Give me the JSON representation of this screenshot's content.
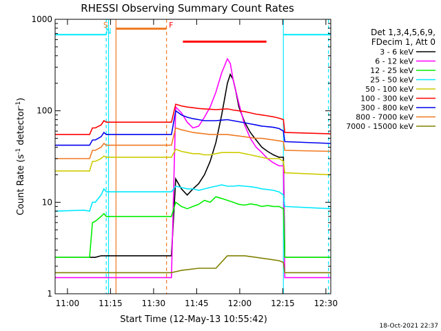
{
  "chart_data": {
    "type": "line",
    "title": "RHESSI Observing Summary Count Rates",
    "xlabel": "Start Time (12-May-13 10:55:42)",
    "ylabel_main": "Count Rate (s",
    "ylabel_exp1": "-1",
    "ylabel_mid": " detector",
    "ylabel_exp2": "-1",
    "ylabel_end": ")",
    "x_unit": "minutes after 10:55:42",
    "xlim": [
      0,
      96
    ],
    "ylim": [
      1,
      1000
    ],
    "yscale": "log",
    "x_ticks": [
      {
        "label": "11:00",
        "x": 4.3
      },
      {
        "label": "11:15",
        "x": 19.3
      },
      {
        "label": "11:30",
        "x": 34.3
      },
      {
        "label": "11:45",
        "x": 49.3
      },
      {
        "label": "12:00",
        "x": 64.3
      },
      {
        "label": "12:15",
        "x": 79.3
      },
      {
        "label": "12:30",
        "x": 94.3
      }
    ],
    "y_ticks": [
      {
        "label": "1",
        "y": 1
      },
      {
        "label": "10",
        "y": 10
      },
      {
        "label": "100",
        "y": 100
      },
      {
        "label": "1000",
        "y": 1000
      }
    ],
    "legend_position": "top-right",
    "legend_header": [
      "Det 1,3,4,5,6,9,",
      "FDecim 1, Att 0"
    ],
    "markers": [
      {
        "label": "S",
        "x": 17.6,
        "color": "#f07820"
      },
      {
        "label": "N",
        "x": 18.6,
        "color": "#00e8ff"
      },
      {
        "label": "F",
        "x": 40.4,
        "color": "#ff0000"
      }
    ],
    "bars": [
      {
        "name": "saa",
        "x0": 0,
        "x1": 17.8,
        "y": 680,
        "color": "#00e8ff"
      },
      {
        "name": "night",
        "x0": 21.2,
        "x1": 38.8,
        "y": 790,
        "color": "#f07820"
      },
      {
        "name": "flare",
        "x0": 44.5,
        "x1": 73.6,
        "y": 570,
        "color": "#ff0000"
      },
      {
        "name": "saa2",
        "x0": 79.5,
        "x1": 96,
        "y": 680,
        "color": "#00e8ff"
      }
    ],
    "vlines": [
      {
        "x": 17.8,
        "color": "#00e8ff",
        "dashed": true
      },
      {
        "x": 18.6,
        "color": "#00e8ff",
        "dashed": false
      },
      {
        "x": 21.2,
        "color": "#f07820",
        "dashed": false
      },
      {
        "x": 38.8,
        "color": "#f07820",
        "dashed": true
      },
      {
        "x": 79.5,
        "color": "#00e8ff",
        "dashed": false
      },
      {
        "x": 95.2,
        "color": "#00e8ff",
        "dashed": true
      }
    ],
    "series": [
      {
        "name": "3 - 6 keV",
        "color": "#000000",
        "points": [
          [
            0,
            2.5
          ],
          [
            12,
            2.5
          ],
          [
            14,
            2.5
          ],
          [
            16,
            2.6
          ],
          [
            17,
            2.6
          ],
          [
            17.8,
            2.6
          ],
          [
            40.5,
            2.6
          ],
          [
            42,
            18
          ],
          [
            44,
            14
          ],
          [
            46,
            12
          ],
          [
            48,
            14
          ],
          [
            50,
            16
          ],
          [
            52,
            20
          ],
          [
            54,
            28
          ],
          [
            56,
            45
          ],
          [
            58,
            90
          ],
          [
            60,
            200
          ],
          [
            61,
            250
          ],
          [
            62,
            220
          ],
          [
            63,
            160
          ],
          [
            64,
            110
          ],
          [
            66,
            75
          ],
          [
            68,
            58
          ],
          [
            70,
            48
          ],
          [
            72,
            40
          ],
          [
            74,
            36
          ],
          [
            76,
            33
          ],
          [
            78,
            31
          ],
          [
            79.5,
            31
          ],
          [
            80,
            2.5
          ],
          [
            96,
            2.5
          ]
        ]
      },
      {
        "name": "6 - 12 keV",
        "color": "#ff00ff",
        "points": [
          [
            0,
            1.5
          ],
          [
            12,
            1.5
          ],
          [
            14,
            1.5
          ],
          [
            17.8,
            1.5
          ],
          [
            40.5,
            1.5
          ],
          [
            42,
            110
          ],
          [
            44,
            95
          ],
          [
            46,
            75
          ],
          [
            48,
            65
          ],
          [
            50,
            68
          ],
          [
            52,
            85
          ],
          [
            54,
            110
          ],
          [
            56,
            160
          ],
          [
            58,
            260
          ],
          [
            60,
            370
          ],
          [
            61,
            330
          ],
          [
            62,
            220
          ],
          [
            64,
            120
          ],
          [
            66,
            70
          ],
          [
            68,
            50
          ],
          [
            70,
            40
          ],
          [
            72,
            35
          ],
          [
            74,
            30
          ],
          [
            76,
            27
          ],
          [
            78,
            25
          ],
          [
            79.5,
            25
          ],
          [
            80,
            1.5
          ],
          [
            96,
            1.5
          ]
        ]
      },
      {
        "name": "12 - 25 keV",
        "color": "#00ee00",
        "points": [
          [
            0,
            2.5
          ],
          [
            10,
            2.5
          ],
          [
            12,
            2.5
          ],
          [
            13,
            6
          ],
          [
            14,
            6.2
          ],
          [
            16,
            7
          ],
          [
            17,
            7.5
          ],
          [
            17.8,
            7
          ],
          [
            40.5,
            7
          ],
          [
            42,
            10
          ],
          [
            44,
            9
          ],
          [
            46,
            8.5
          ],
          [
            48,
            9
          ],
          [
            50,
            9.5
          ],
          [
            52,
            10.5
          ],
          [
            54,
            10
          ],
          [
            56,
            11.5
          ],
          [
            58,
            11
          ],
          [
            60,
            10.5
          ],
          [
            62,
            10
          ],
          [
            64,
            9.5
          ],
          [
            66,
            9.3
          ],
          [
            68,
            9.6
          ],
          [
            70,
            9.4
          ],
          [
            72,
            9
          ],
          [
            74,
            9.2
          ],
          [
            76,
            9
          ],
          [
            78,
            9
          ],
          [
            79.5,
            8.5
          ],
          [
            80,
            2.5
          ],
          [
            96,
            2.5
          ]
        ]
      },
      {
        "name": "25 - 50 keV",
        "color": "#00e8ff",
        "points": [
          [
            0,
            8
          ],
          [
            10,
            8.2
          ],
          [
            12,
            8
          ],
          [
            13,
            10
          ],
          [
            14,
            10
          ],
          [
            16,
            12
          ],
          [
            17,
            14
          ],
          [
            17.8,
            13
          ],
          [
            40.5,
            13
          ],
          [
            42,
            15
          ],
          [
            44,
            14.5
          ],
          [
            46,
            14
          ],
          [
            48,
            14
          ],
          [
            50,
            13.5
          ],
          [
            52,
            14
          ],
          [
            54,
            14.5
          ],
          [
            56,
            15
          ],
          [
            58,
            15.5
          ],
          [
            60,
            15
          ],
          [
            62,
            15
          ],
          [
            64,
            15.2
          ],
          [
            66,
            15
          ],
          [
            68,
            14.8
          ],
          [
            70,
            14.5
          ],
          [
            72,
            14
          ],
          [
            74,
            13.8
          ],
          [
            76,
            13.5
          ],
          [
            78,
            13
          ],
          [
            79.5,
            12
          ],
          [
            80,
            9
          ],
          [
            96,
            8.5
          ]
        ]
      },
      {
        "name": "50 - 100 keV",
        "color": "#cccc00",
        "points": [
          [
            0,
            22
          ],
          [
            10,
            22
          ],
          [
            12,
            22
          ],
          [
            13,
            28
          ],
          [
            14,
            28
          ],
          [
            16,
            30
          ],
          [
            17,
            32
          ],
          [
            17.8,
            31
          ],
          [
            40.5,
            31
          ],
          [
            42,
            38
          ],
          [
            44,
            36
          ],
          [
            46,
            35
          ],
          [
            48,
            34
          ],
          [
            50,
            34
          ],
          [
            52,
            33
          ],
          [
            54,
            33
          ],
          [
            56,
            34
          ],
          [
            58,
            35
          ],
          [
            60,
            35
          ],
          [
            62,
            35
          ],
          [
            64,
            35
          ],
          [
            66,
            34
          ],
          [
            68,
            33
          ],
          [
            70,
            32
          ],
          [
            72,
            31
          ],
          [
            74,
            30
          ],
          [
            76,
            30
          ],
          [
            78,
            30
          ],
          [
            79.5,
            28
          ],
          [
            80,
            21
          ],
          [
            96,
            20
          ]
        ]
      },
      {
        "name": "100 - 300 keV",
        "color": "#ff0000",
        "points": [
          [
            0,
            55
          ],
          [
            10,
            55
          ],
          [
            12,
            55
          ],
          [
            13,
            65
          ],
          [
            14,
            65
          ],
          [
            16,
            70
          ],
          [
            17,
            78
          ],
          [
            17.8,
            75
          ],
          [
            40.5,
            75
          ],
          [
            42,
            118
          ],
          [
            44,
            113
          ],
          [
            46,
            110
          ],
          [
            48,
            108
          ],
          [
            50,
            106
          ],
          [
            52,
            105
          ],
          [
            54,
            104
          ],
          [
            56,
            103
          ],
          [
            58,
            104
          ],
          [
            60,
            105
          ],
          [
            62,
            102
          ],
          [
            64,
            100
          ],
          [
            66,
            98
          ],
          [
            68,
            95
          ],
          [
            70,
            92
          ],
          [
            72,
            90
          ],
          [
            74,
            88
          ],
          [
            76,
            86
          ],
          [
            78,
            83
          ],
          [
            79.5,
            80
          ],
          [
            80,
            58
          ],
          [
            96,
            56
          ]
        ]
      },
      {
        "name": "300 - 800 keV",
        "color": "#0000ee",
        "points": [
          [
            0,
            42
          ],
          [
            10,
            42
          ],
          [
            12,
            42
          ],
          [
            13,
            48
          ],
          [
            14,
            48
          ],
          [
            16,
            52
          ],
          [
            17,
            58
          ],
          [
            17.8,
            55
          ],
          [
            40.5,
            55
          ],
          [
            42,
            100
          ],
          [
            44,
            90
          ],
          [
            46,
            85
          ],
          [
            48,
            82
          ],
          [
            50,
            80
          ],
          [
            52,
            78
          ],
          [
            54,
            78
          ],
          [
            56,
            78
          ],
          [
            58,
            79
          ],
          [
            60,
            80
          ],
          [
            62,
            78
          ],
          [
            64,
            76
          ],
          [
            66,
            74
          ],
          [
            68,
            72
          ],
          [
            70,
            70
          ],
          [
            72,
            68
          ],
          [
            74,
            67
          ],
          [
            76,
            66
          ],
          [
            78,
            64
          ],
          [
            79.5,
            60
          ],
          [
            80,
            46
          ],
          [
            96,
            44
          ]
        ]
      },
      {
        "name": "800 - 7000 keV",
        "color": "#f07820",
        "points": [
          [
            0,
            30
          ],
          [
            10,
            30
          ],
          [
            12,
            30
          ],
          [
            13,
            37
          ],
          [
            14,
            37
          ],
          [
            16,
            40
          ],
          [
            17,
            44
          ],
          [
            17.8,
            42
          ],
          [
            40.5,
            42
          ],
          [
            42,
            65
          ],
          [
            44,
            62
          ],
          [
            46,
            60
          ],
          [
            48,
            58
          ],
          [
            50,
            57
          ],
          [
            52,
            56
          ],
          [
            54,
            55
          ],
          [
            56,
            55
          ],
          [
            58,
            55
          ],
          [
            60,
            55
          ],
          [
            62,
            54
          ],
          [
            64,
            53
          ],
          [
            66,
            52
          ],
          [
            68,
            51
          ],
          [
            70,
            50
          ],
          [
            72,
            50
          ],
          [
            74,
            49
          ],
          [
            76,
            48
          ],
          [
            78,
            47
          ],
          [
            79.5,
            46
          ],
          [
            80,
            37
          ],
          [
            96,
            36
          ]
        ]
      },
      {
        "name": "7000 - 15000 keV",
        "color": "#808000",
        "points": [
          [
            0,
            1.7
          ],
          [
            12,
            1.7
          ],
          [
            17.8,
            1.7
          ],
          [
            40.5,
            1.7
          ],
          [
            44,
            1.8
          ],
          [
            50,
            1.9
          ],
          [
            56,
            1.9
          ],
          [
            60,
            2.6
          ],
          [
            66,
            2.6
          ],
          [
            70,
            2.5
          ],
          [
            74,
            2.4
          ],
          [
            78,
            2.3
          ],
          [
            79.5,
            2.2
          ],
          [
            80,
            1.7
          ],
          [
            96,
            1.7
          ]
        ]
      }
    ],
    "footer": "18-Oct-2021 22:37"
  }
}
